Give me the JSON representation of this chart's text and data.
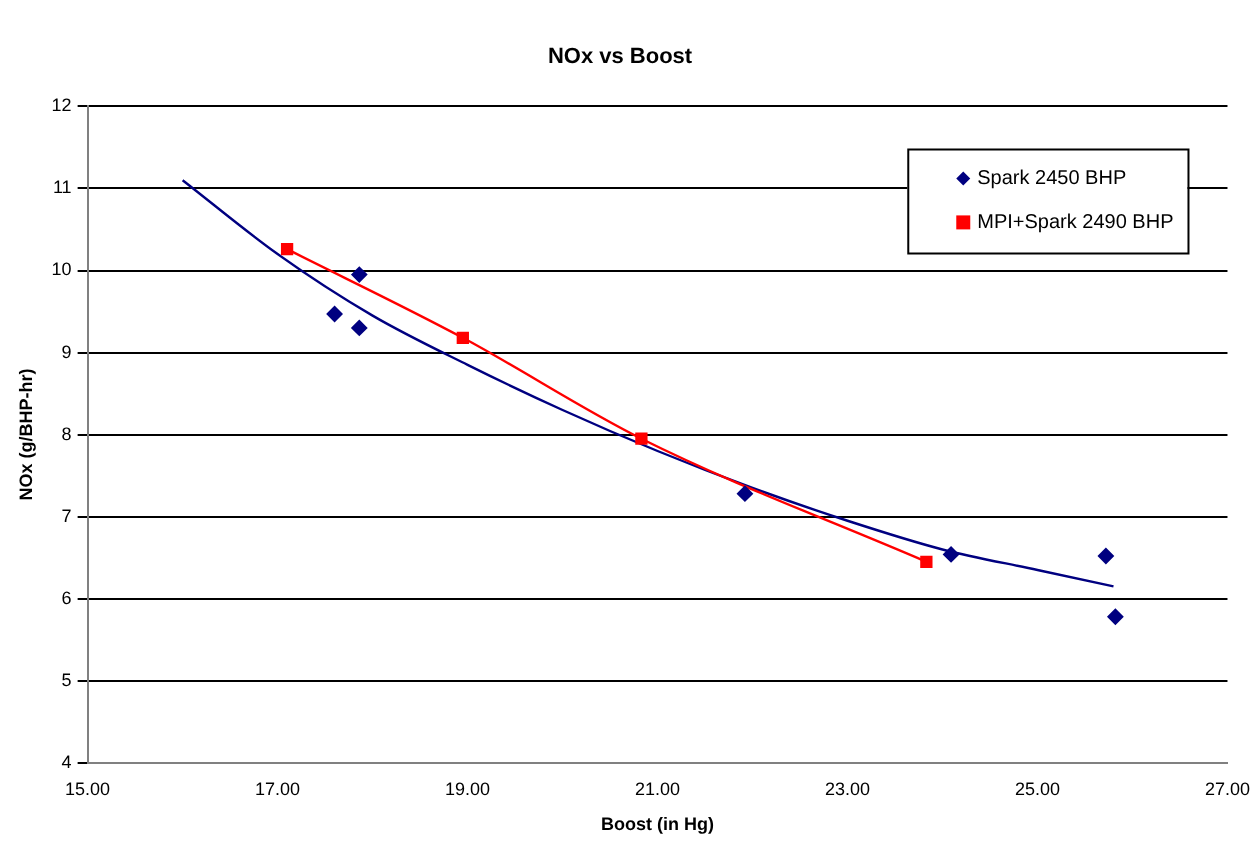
{
  "chart_data": {
    "type": "scatter",
    "title": "NOx vs Boost",
    "xlabel": "Boost (in Hg)",
    "ylabel": "NOx (g/BHP-hr)",
    "xlim": [
      15,
      27
    ],
    "xticks": [
      {
        "value": 15,
        "label": "15.00"
      },
      {
        "value": 17,
        "label": "17.00"
      },
      {
        "value": 19,
        "label": "19.00"
      },
      {
        "value": 21,
        "label": "21.00"
      },
      {
        "value": 23,
        "label": "23.00"
      },
      {
        "value": 25,
        "label": "25.00"
      },
      {
        "value": 27,
        "label": "27.00"
      }
    ],
    "ylim": [
      4,
      12
    ],
    "yticks": [
      4,
      5,
      6,
      7,
      8,
      9,
      10,
      11,
      12
    ],
    "grid": "y",
    "legend": "top right",
    "series": [
      {
        "name": "Spark 2450 BHP",
        "marker": "diamond",
        "color": "#000080",
        "x": [
          17.6,
          17.86,
          17.86,
          21.92,
          24.09,
          25.72,
          25.82
        ],
        "values": [
          9.47,
          9.95,
          9.3,
          7.28,
          6.54,
          6.52,
          5.78
        ]
      },
      {
        "name": "MPI+Spark 2490 BHP",
        "type": "line",
        "marker": "square",
        "color": "#ff0000",
        "x": [
          17.1,
          18.95,
          20.83,
          23.83
        ],
        "values": [
          10.26,
          9.18,
          7.95,
          6.45
        ]
      },
      {
        "type": "line",
        "marker": "none",
        "color": "#000080",
        "x": [
          16,
          17,
          18,
          19,
          20,
          21,
          22,
          23,
          24,
          25,
          25.8
        ],
        "values": [
          11.1,
          10.2,
          9.45,
          8.85,
          8.3,
          7.8,
          7.35,
          6.95,
          6.6,
          6.35,
          6.15
        ]
      }
    ]
  }
}
